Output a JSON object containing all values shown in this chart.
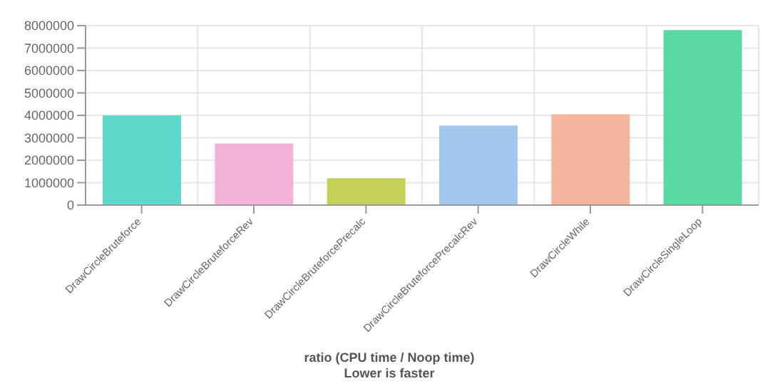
{
  "chart_data": {
    "type": "bar",
    "xlabel": "ratio (CPU time / Noop time)\nLower is faster",
    "categories": [
      "DrawCircleBruteforce",
      "DrawCircleBruteforceRev",
      "DrawCircleBruteforcePrecalc",
      "DrawCircleBruteforcePrecalcRev",
      "DrawCircleWhile",
      "DrawCircleSingleLoop"
    ],
    "values": [
      4000000,
      2750000,
      1200000,
      3550000,
      4050000,
      7800000
    ],
    "colors": [
      "#5fd8cc",
      "#f5b2d8",
      "#c4d059",
      "#a3c8f0",
      "#f5b49c",
      "#5bd9a3"
    ],
    "ylim": [
      0,
      8000000
    ],
    "yticks": [
      0,
      1000000,
      2000000,
      3000000,
      4000000,
      5000000,
      6000000,
      7000000,
      8000000
    ],
    "grid": true,
    "legend": false
  }
}
